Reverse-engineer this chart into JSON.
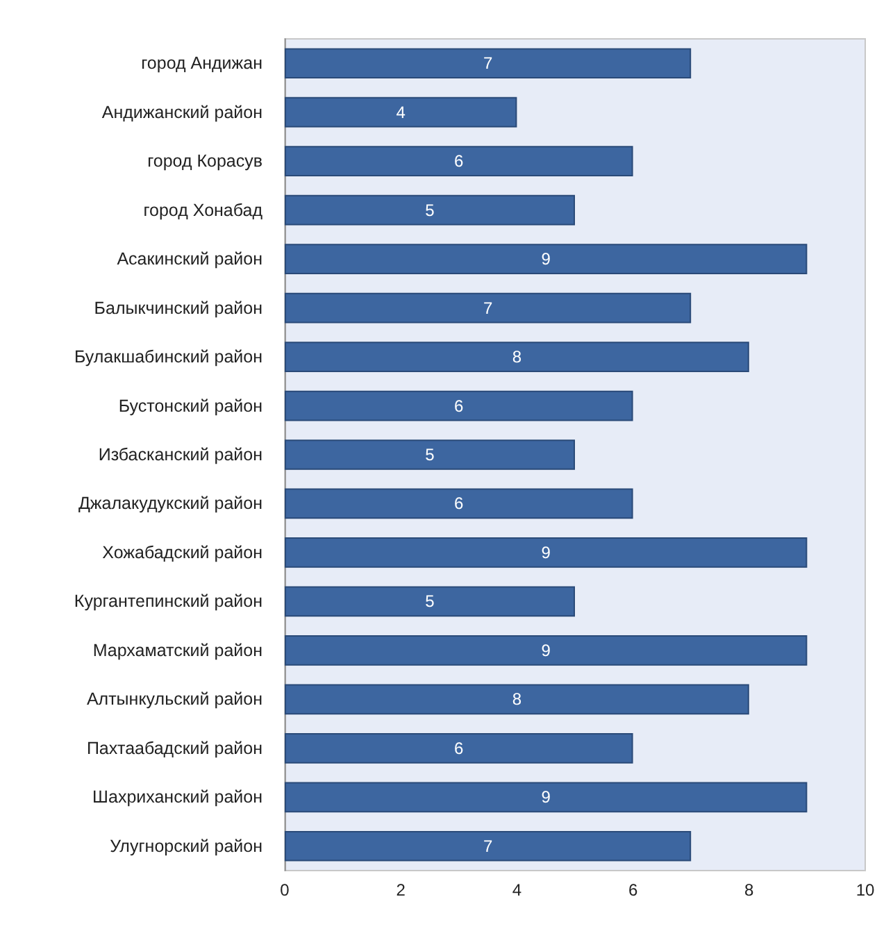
{
  "chart_data": {
    "type": "bar",
    "orientation": "horizontal",
    "categories": [
      "город Андижан",
      "Андижанский район",
      "город Корасув",
      "город Хонабад",
      "Асакинский район",
      "Балыкчинский район",
      "Булакшабинский район",
      "Бустонский район",
      "Избасканский район",
      "Джалакудукский район",
      "Хожабадский район",
      "Кургантепинский район",
      "Мархаматский район",
      "Алтынкульский район",
      "Пахтаабадский район",
      "Шахриханский район",
      "Улугнорский район"
    ],
    "values": [
      7,
      4,
      6,
      5,
      9,
      7,
      8,
      6,
      5,
      6,
      9,
      5,
      9,
      8,
      6,
      9,
      7
    ],
    "color": "#3d66a0",
    "xlim": [
      0,
      10
    ],
    "xticks": [
      0,
      2,
      4,
      6,
      8,
      10
    ],
    "data_labels": true,
    "grid": false
  }
}
